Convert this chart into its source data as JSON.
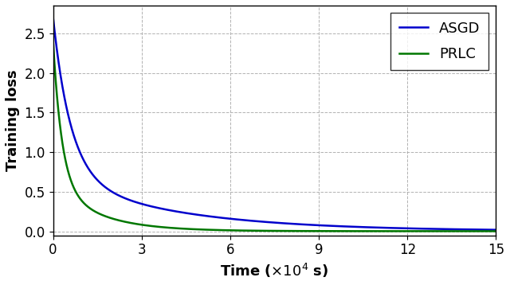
{
  "title": "",
  "xlabel": "Time ($\\times10^4$ s)",
  "ylabel": "Training loss",
  "xlim": [
    0,
    150000
  ],
  "ylim": [
    -0.05,
    2.85
  ],
  "xticks": [
    0,
    30000,
    60000,
    90000,
    120000,
    150000
  ],
  "xticklabels": [
    "0",
    "3",
    "6",
    "9",
    "12",
    "15"
  ],
  "yticks": [
    0.0,
    0.5,
    1.0,
    1.5,
    2.0,
    2.5
  ],
  "asgd_color": "#0000cc",
  "prlc_color": "#007700",
  "legend_labels": [
    "ASGD",
    "PRLC"
  ],
  "grid_color": "#aaaaaa",
  "background_color": "#ffffff",
  "line_width": 1.8,
  "asgd_start": 2.7,
  "prlc_start": 2.4,
  "asgd_params": [
    2.0,
    6000,
    0.7,
    40000,
    0.004
  ],
  "prlc_params": [
    1.8,
    3000,
    0.6,
    15000,
    0.003
  ]
}
